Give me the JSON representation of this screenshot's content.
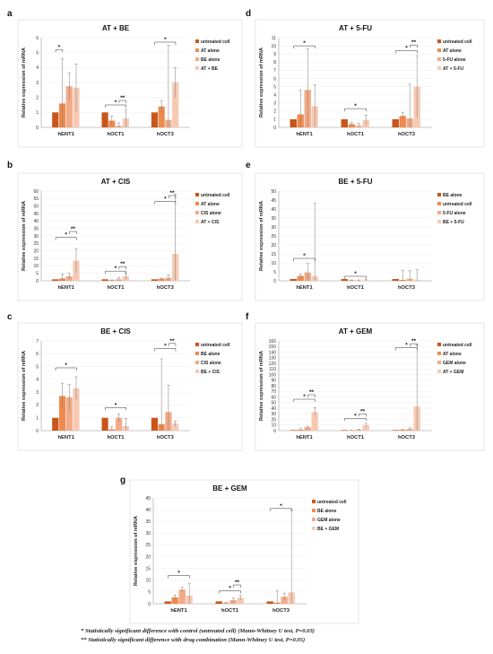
{
  "colors": {
    "s1": "#c8561a",
    "s2": "#ef8a4e",
    "s3": "#f2aa86",
    "s4": "#f7c9b3",
    "axis": "#9a9a9a",
    "grid": "#ececec",
    "frame": "#d9d9d9",
    "bracket": "#333333"
  },
  "footnotes": [
    "* Statistically significant difference with control (untreated cell) (Mann-Whitney U test, P=0.03)",
    "** Statistically significant difference with drug combination (Mann-Whitney U test, P=0.05)"
  ],
  "chart_data": [
    {
      "letter": "a",
      "type": "bar",
      "title": "AT + BE",
      "ylabel": "Relative expression of mRNA",
      "ylim": [
        0,
        6
      ],
      "yticks": [
        0,
        1,
        2,
        3,
        4,
        5,
        6
      ],
      "categories": [
        "hENT1",
        "hOCT1",
        "hOCT3"
      ],
      "series": [
        {
          "name": "untreated cell",
          "values": [
            1,
            1,
            1
          ],
          "err": [
            0,
            0,
            0
          ]
        },
        {
          "name": "AT alone",
          "values": [
            1.6,
            0.45,
            1.4
          ],
          "err": [
            3.0,
            0.3,
            0.4
          ]
        },
        {
          "name": "BE alone",
          "values": [
            2.75,
            0.1,
            0.5
          ],
          "err": [
            0.9,
            0.2,
            5.0
          ]
        },
        {
          "name": "AT + BE",
          "values": [
            2.65,
            0.6,
            3.0
          ],
          "err": [
            1.6,
            0.6,
            1.0
          ]
        }
      ],
      "brackets": [
        {
          "label": "*",
          "cat": 0,
          "from": 0,
          "to": 1,
          "y": 5.2
        },
        {
          "label": "*",
          "cat": 1,
          "from": 0,
          "to": 3,
          "y": 1.5
        },
        {
          "label": "**",
          "cat": 1,
          "from": 2,
          "to": 3,
          "y": 1.8
        },
        {
          "label": "*",
          "cat": 2,
          "from": 0,
          "to": 3,
          "y": 5.7
        }
      ]
    },
    {
      "letter": "d",
      "type": "bar",
      "title": "AT + 5-FU",
      "ylabel": "Relative expression of mRNA",
      "ylim": [
        0,
        11
      ],
      "yticks": [
        0,
        1,
        2,
        3,
        4,
        5,
        6,
        7,
        8,
        9,
        10,
        11
      ],
      "categories": [
        "hENT1",
        "hOCT1",
        "hOCT3"
      ],
      "series": [
        {
          "name": "untreated cell",
          "values": [
            1,
            1,
            1
          ],
          "err": [
            0,
            0,
            0
          ]
        },
        {
          "name": "AT alone",
          "values": [
            1.6,
            0.4,
            1.4
          ],
          "err": [
            3.0,
            0.2,
            0.4
          ]
        },
        {
          "name": "5-FU alone",
          "values": [
            4.6,
            0.2,
            1.1
          ],
          "err": [
            5.0,
            0.3,
            4.2
          ]
        },
        {
          "name": "AT + 5-FU",
          "values": [
            2.6,
            0.9,
            5.0
          ],
          "err": [
            2.6,
            0.6,
            3.8
          ]
        }
      ],
      "brackets": [
        {
          "label": "*",
          "cat": 0,
          "from": 0,
          "to": 3,
          "y": 10.0
        },
        {
          "label": "*",
          "cat": 1,
          "from": 0,
          "to": 3,
          "y": 2.3
        },
        {
          "label": "*",
          "cat": 2,
          "from": 0,
          "to": 3,
          "y": 9.4
        },
        {
          "label": "**",
          "cat": 2,
          "from": 2,
          "to": 3,
          "y": 10.1
        }
      ]
    },
    {
      "letter": "b",
      "type": "bar",
      "title": "AT + CIS",
      "ylabel": "Relative expression of mRNA",
      "ylim": [
        0,
        60
      ],
      "yticks": [
        0,
        5,
        10,
        15,
        20,
        25,
        30,
        35,
        40,
        45,
        50,
        55,
        60
      ],
      "categories": [
        "hENT1",
        "hOCT1",
        "hOCT3"
      ],
      "series": [
        {
          "name": "untreated cell",
          "values": [
            1,
            1,
            1
          ],
          "err": [
            0,
            0,
            0
          ]
        },
        {
          "name": "AT alone",
          "values": [
            1.6,
            0.4,
            1.4
          ],
          "err": [
            3.0,
            0.2,
            0.4
          ]
        },
        {
          "name": "CIS alone",
          "values": [
            3.0,
            1.0,
            2.0
          ],
          "err": [
            2.0,
            1.0,
            2.0
          ]
        },
        {
          "name": "AT + CIS",
          "values": [
            13.5,
            3.0,
            18.0
          ],
          "err": [
            8.0,
            2.0,
            40.0
          ]
        }
      ],
      "brackets": [
        {
          "label": "*",
          "cat": 0,
          "from": 0,
          "to": 3,
          "y": 29
        },
        {
          "label": "**",
          "cat": 0,
          "from": 2,
          "to": 3,
          "y": 33
        },
        {
          "label": "*",
          "cat": 1,
          "from": 0,
          "to": 3,
          "y": 6.5
        },
        {
          "label": "**",
          "cat": 1,
          "from": 2,
          "to": 3,
          "y": 9.5
        },
        {
          "label": "*",
          "cat": 2,
          "from": 0,
          "to": 3,
          "y": 53
        },
        {
          "label": "**",
          "cat": 2,
          "from": 2,
          "to": 3,
          "y": 57
        }
      ]
    },
    {
      "letter": "e",
      "type": "bar",
      "title": "BE + 5-FU",
      "ylabel": "Relative expression of mRNA",
      "ylim": [
        0,
        50
      ],
      "yticks": [
        0,
        5,
        10,
        15,
        20,
        25,
        30,
        35,
        40,
        45,
        50
      ],
      "categories": [
        "hENT1",
        "hOCT1",
        "hOCT3"
      ],
      "series": [
        {
          "name": "BE alone",
          "values": [
            1,
            1,
            1
          ],
          "err": [
            0,
            0,
            0
          ]
        },
        {
          "name": "untreated cell",
          "values": [
            2.7,
            0.3,
            0.5
          ],
          "err": [
            1.0,
            0.2,
            5.5
          ]
        },
        {
          "name": "5-FU alone",
          "values": [
            4.6,
            0.2,
            1.1
          ],
          "err": [
            5.0,
            0.3,
            4.5
          ]
        },
        {
          "name": "BE + 5-FU",
          "values": [
            2.6,
            0.3,
            0.6
          ],
          "err": [
            40.5,
            0.3,
            5.5
          ]
        }
      ],
      "brackets": [
        {
          "label": "*",
          "cat": 0,
          "from": 0,
          "to": 3,
          "y": 12.5
        },
        {
          "label": "*",
          "cat": 1,
          "from": 0,
          "to": 3,
          "y": 2.5
        }
      ]
    },
    {
      "letter": "c",
      "type": "bar",
      "title": "BE + CIS",
      "ylabel": "Relative expression of mRNA",
      "ylim": [
        0,
        7
      ],
      "yticks": [
        0,
        1,
        2,
        3,
        4,
        5,
        6,
        7
      ],
      "categories": [
        "hENT1",
        "hOCT1",
        "hOCT3"
      ],
      "series": [
        {
          "name": "untreated cell",
          "values": [
            1,
            1,
            1
          ],
          "err": [
            0,
            0,
            0
          ]
        },
        {
          "name": "BE alone",
          "values": [
            2.7,
            0.1,
            0.5
          ],
          "err": [
            1.0,
            0.2,
            5.1
          ]
        },
        {
          "name": "CIS alone",
          "values": [
            2.6,
            1.0,
            1.45
          ],
          "err": [
            1.0,
            0.3,
            2.1
          ]
        },
        {
          "name": "BE + CIS",
          "values": [
            3.3,
            0.35,
            0.55
          ],
          "err": [
            0.9,
            0.6,
            0.2
          ]
        }
      ],
      "brackets": [
        {
          "label": "*",
          "cat": 0,
          "from": 0,
          "to": 3,
          "y": 4.9
        },
        {
          "label": "*",
          "cat": 1,
          "from": 0,
          "to": 3,
          "y": 1.8
        },
        {
          "label": "*",
          "cat": 2,
          "from": 0,
          "to": 3,
          "y": 6.4
        },
        {
          "label": "**",
          "cat": 2,
          "from": 2,
          "to": 3,
          "y": 6.8
        }
      ]
    },
    {
      "letter": "f",
      "type": "bar",
      "title": "AT + GEM",
      "ylabel": "Relative expression of mRNA",
      "ylim": [
        0,
        160
      ],
      "yticks": [
        0,
        10,
        20,
        30,
        40,
        50,
        60,
        70,
        80,
        90,
        100,
        110,
        120,
        130,
        140,
        150,
        160
      ],
      "categories": [
        "hENT1",
        "hOCT1",
        "hOCT3"
      ],
      "series": [
        {
          "name": "untreated cell",
          "values": [
            1,
            1,
            1
          ],
          "err": [
            0,
            0,
            0
          ]
        },
        {
          "name": "AT alone",
          "values": [
            1.6,
            0.4,
            1.4
          ],
          "err": [
            3.0,
            0.2,
            0.4
          ]
        },
        {
          "name": "GEM alone",
          "values": [
            6.0,
            1.5,
            3.0
          ],
          "err": [
            2.0,
            1.0,
            2.0
          ]
        },
        {
          "name": "AT + GEM",
          "values": [
            33.0,
            10.0,
            43.0
          ],
          "err": [
            8.0,
            3.0,
            110.0
          ]
        }
      ],
      "brackets": [
        {
          "label": "*",
          "cat": 0,
          "from": 0,
          "to": 3,
          "y": 56
        },
        {
          "label": "**",
          "cat": 0,
          "from": 2,
          "to": 3,
          "y": 64
        },
        {
          "label": "*",
          "cat": 1,
          "from": 0,
          "to": 3,
          "y": 22
        },
        {
          "label": "**",
          "cat": 1,
          "from": 2,
          "to": 3,
          "y": 30
        },
        {
          "label": "*",
          "cat": 2,
          "from": 0,
          "to": 3,
          "y": 148
        },
        {
          "label": "**",
          "cat": 2,
          "from": 2,
          "to": 3,
          "y": 155
        }
      ]
    },
    {
      "letter": "g",
      "type": "bar",
      "title": "BE + GEM",
      "ylabel": "Relative expression of mRNA",
      "ylim": [
        0,
        45
      ],
      "yticks": [
        0,
        5,
        10,
        15,
        20,
        25,
        30,
        35,
        40,
        45
      ],
      "categories": [
        "hENT1",
        "hOCT1",
        "hOCT3"
      ],
      "series": [
        {
          "name": "untreated cell",
          "values": [
            1,
            1,
            1
          ],
          "err": [
            0,
            0,
            0
          ]
        },
        {
          "name": "BE alone",
          "values": [
            2.7,
            0.3,
            0.5
          ],
          "err": [
            1.0,
            0.2,
            5.0
          ]
        },
        {
          "name": "GEM alone",
          "values": [
            6.0,
            1.5,
            3.0
          ],
          "err": [
            1.0,
            1.0,
            1.5
          ]
        },
        {
          "name": "BE + GEM",
          "values": [
            3.5,
            2.5,
            4.8
          ],
          "err": [
            5.0,
            1.0,
            35.0
          ]
        }
      ],
      "brackets": [
        {
          "label": "*",
          "cat": 0,
          "from": 0,
          "to": 3,
          "y": 12
        },
        {
          "label": "*",
          "cat": 1,
          "from": 0,
          "to": 3,
          "y": 5.5
        },
        {
          "label": "**",
          "cat": 1,
          "from": 2,
          "to": 3,
          "y": 8
        },
        {
          "label": "*",
          "cat": 2,
          "from": 0,
          "to": 3,
          "y": 40.5
        }
      ]
    }
  ]
}
